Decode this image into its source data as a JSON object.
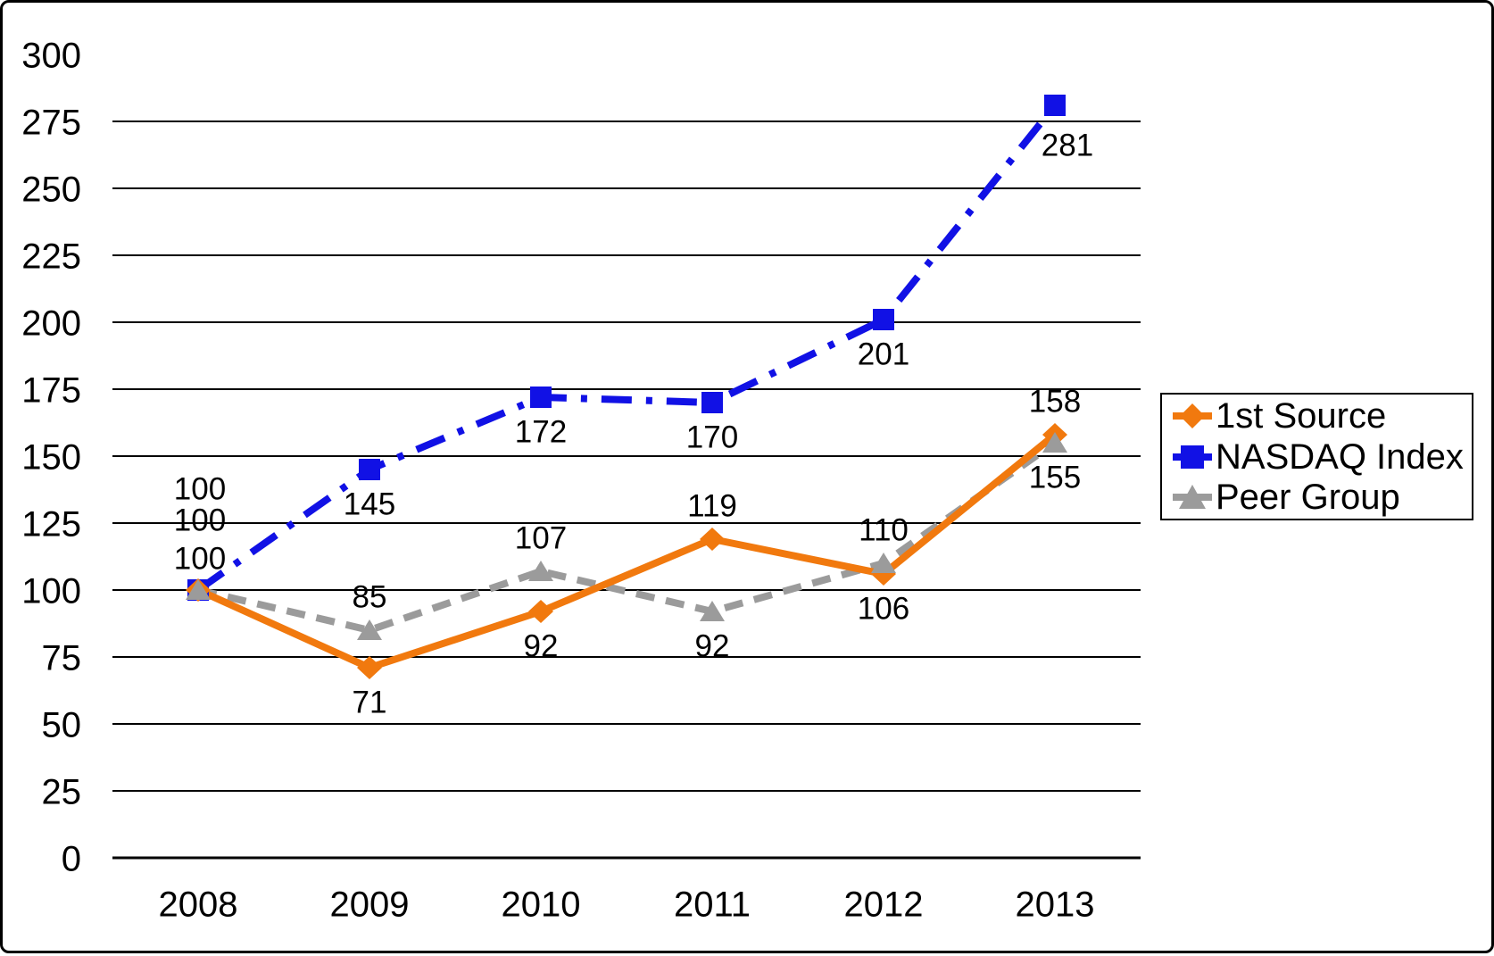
{
  "chart_data": {
    "type": "line",
    "title": "",
    "categories": [
      "2008",
      "2009",
      "2010",
      "2011",
      "2012",
      "2013"
    ],
    "series": [
      {
        "name": "1st Source",
        "color": "#F1790E",
        "marker": "diamond",
        "line_style": "solid",
        "values": [
          100,
          71,
          92,
          119,
          106,
          158
        ],
        "label_positions": [
          "stack-top",
          "below",
          "below",
          "above",
          "below",
          "above"
        ]
      },
      {
        "name": "NASDAQ Index",
        "color": "#1111E5",
        "marker": "square",
        "line_style": "dash-dot",
        "values": [
          100,
          145,
          172,
          170,
          201,
          281
        ],
        "label_positions": [
          "stack-middle",
          "below",
          "below",
          "below",
          "below",
          "below-right"
        ]
      },
      {
        "name": "Peer Group",
        "color": "#9B9B9B",
        "marker": "triangle",
        "line_style": "dashed",
        "values": [
          100,
          85,
          107,
          92,
          110,
          155
        ],
        "label_positions": [
          "stack-bottom",
          "above",
          "above",
          "below",
          "above",
          "below"
        ]
      }
    ],
    "ylim": [
      0,
      300
    ],
    "ytick_step": 25,
    "yticks": [
      0,
      25,
      50,
      75,
      100,
      125,
      150,
      175,
      200,
      225,
      250,
      275,
      300
    ],
    "grid": "horizontal",
    "legend_position": "right",
    "axis_color": "#000000",
    "text_color": "#000000",
    "background_color": "#FFFFFF"
  }
}
